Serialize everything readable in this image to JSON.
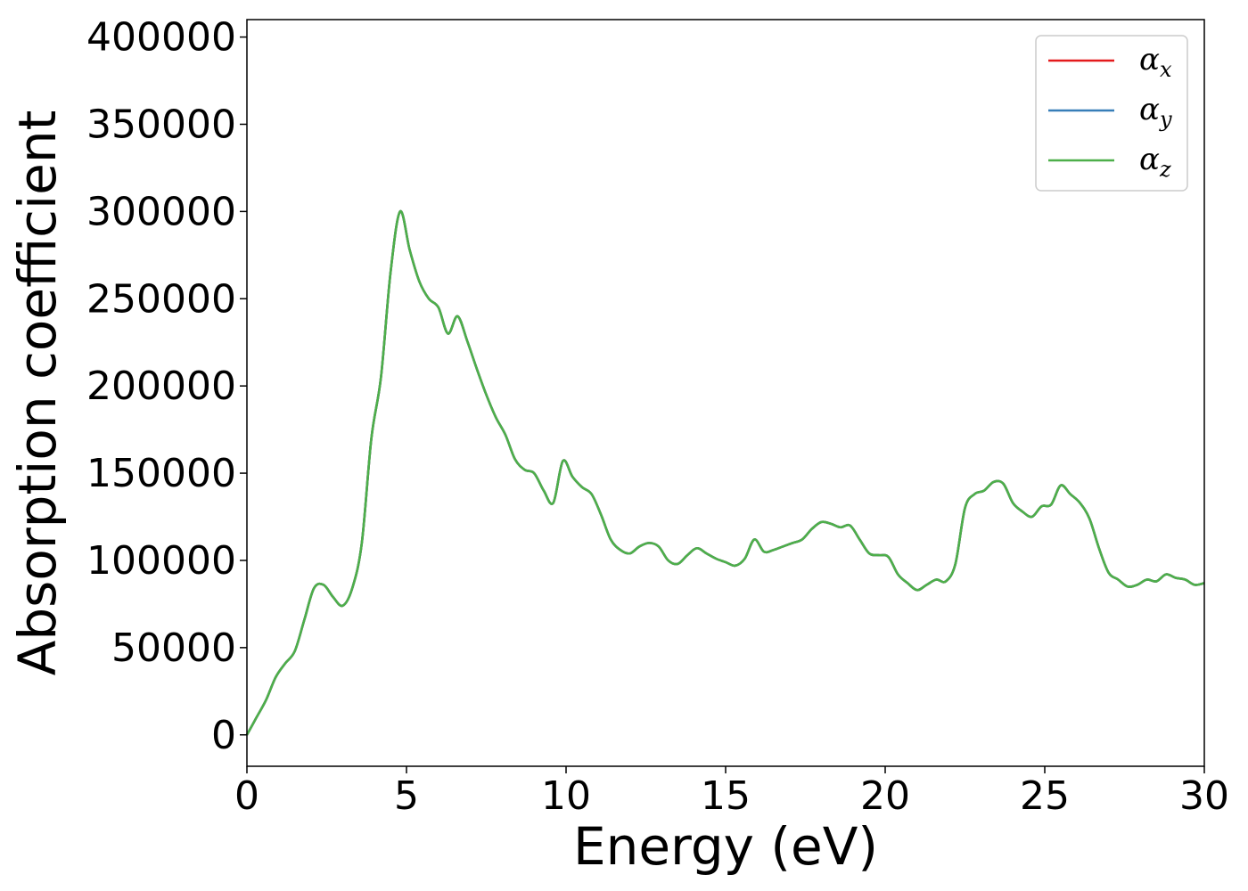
{
  "chart_data": {
    "type": "line",
    "title": "",
    "xlabel": "Energy (eV)",
    "ylabel": "Absorption coefficient",
    "xlim": [
      0,
      30
    ],
    "ylim": [
      -18000,
      410000
    ],
    "xticks": [
      0,
      5,
      10,
      15,
      20,
      25,
      30
    ],
    "yticks": [
      0,
      50000,
      100000,
      150000,
      200000,
      250000,
      300000,
      350000,
      400000
    ],
    "grid": false,
    "legend_position": "top-right",
    "x": [
      0,
      0.3,
      0.6,
      0.9,
      1.2,
      1.5,
      1.8,
      2.1,
      2.4,
      2.7,
      3.0,
      3.3,
      3.6,
      3.9,
      4.2,
      4.5,
      4.8,
      5.1,
      5.4,
      5.7,
      6.0,
      6.3,
      6.6,
      6.9,
      7.2,
      7.5,
      7.8,
      8.1,
      8.4,
      8.7,
      9.0,
      9.3,
      9.6,
      9.9,
      10.2,
      10.5,
      10.8,
      11.1,
      11.4,
      11.7,
      12.0,
      12.3,
      12.6,
      12.9,
      13.2,
      13.5,
      13.8,
      14.1,
      14.4,
      14.7,
      15.0,
      15.3,
      15.6,
      15.9,
      16.2,
      16.5,
      16.8,
      17.1,
      17.4,
      17.7,
      18.0,
      18.3,
      18.6,
      18.9,
      19.2,
      19.5,
      19.8,
      20.1,
      20.4,
      20.7,
      21.0,
      21.3,
      21.6,
      21.9,
      22.2,
      22.5,
      22.8,
      23.1,
      23.4,
      23.7,
      24.0,
      24.3,
      24.6,
      24.9,
      25.2,
      25.5,
      25.8,
      26.1,
      26.4,
      26.7,
      27.0,
      27.3,
      27.6,
      27.9,
      28.2,
      28.5,
      28.8,
      29.1,
      29.4,
      29.7,
      30.0
    ],
    "series": [
      {
        "name": "α_x",
        "label_main": "α",
        "label_sub": "x",
        "color": "#e41a1c",
        "values": [
          0,
          10000,
          20000,
          33000,
          41000,
          48000,
          66000,
          84000,
          86000,
          79000,
          74000,
          84000,
          110000,
          170000,
          205000,
          265000,
          300000,
          278000,
          260000,
          250000,
          245000,
          230000,
          240000,
          226000,
          210000,
          195000,
          182000,
          172000,
          158000,
          152000,
          150000,
          140000,
          133000,
          157000,
          148000,
          142000,
          138000,
          126000,
          112000,
          106000,
          104000,
          108000,
          110000,
          108000,
          100000,
          98000,
          103000,
          107000,
          104000,
          101000,
          99000,
          97000,
          101000,
          112000,
          105000,
          106000,
          108000,
          110000,
          112000,
          118000,
          122000,
          121000,
          119000,
          120000,
          112000,
          104000,
          103000,
          102000,
          92000,
          87000,
          83000,
          86000,
          89000,
          88000,
          98000,
          130000,
          138000,
          140000,
          145000,
          144000,
          133000,
          128000,
          125000,
          131000,
          132000,
          143000,
          138000,
          133000,
          124000,
          107000,
          93000,
          89000,
          85000,
          86000,
          89000,
          88000,
          92000,
          90000,
          89000,
          86000,
          87000
        ]
      },
      {
        "name": "α_y",
        "label_main": "α",
        "label_sub": "y",
        "color": "#377eb8",
        "values": [
          0,
          10000,
          20000,
          33000,
          41000,
          48000,
          66000,
          84000,
          86000,
          79000,
          74000,
          84000,
          110000,
          170000,
          205000,
          265000,
          300000,
          278000,
          260000,
          250000,
          245000,
          230000,
          240000,
          226000,
          210000,
          195000,
          182000,
          172000,
          158000,
          152000,
          150000,
          140000,
          133000,
          157000,
          148000,
          142000,
          138000,
          126000,
          112000,
          106000,
          104000,
          108000,
          110000,
          108000,
          100000,
          98000,
          103000,
          107000,
          104000,
          101000,
          99000,
          97000,
          101000,
          112000,
          105000,
          106000,
          108000,
          110000,
          112000,
          118000,
          122000,
          121000,
          119000,
          120000,
          112000,
          104000,
          103000,
          102000,
          92000,
          87000,
          83000,
          86000,
          89000,
          88000,
          98000,
          130000,
          138000,
          140000,
          145000,
          144000,
          133000,
          128000,
          125000,
          131000,
          132000,
          143000,
          138000,
          133000,
          124000,
          107000,
          93000,
          89000,
          85000,
          86000,
          89000,
          88000,
          92000,
          90000,
          89000,
          86000,
          87000
        ]
      },
      {
        "name": "α_z",
        "label_main": "α",
        "label_sub": "z",
        "color": "#4daf4a",
        "values": [
          0,
          10000,
          20000,
          33000,
          41000,
          48000,
          66000,
          84000,
          86000,
          79000,
          74000,
          84000,
          110000,
          170000,
          205000,
          265000,
          300000,
          278000,
          260000,
          250000,
          245000,
          230000,
          240000,
          226000,
          210000,
          195000,
          182000,
          172000,
          158000,
          152000,
          150000,
          140000,
          133000,
          157000,
          148000,
          142000,
          138000,
          126000,
          112000,
          106000,
          104000,
          108000,
          110000,
          108000,
          100000,
          98000,
          103000,
          107000,
          104000,
          101000,
          99000,
          97000,
          101000,
          112000,
          105000,
          106000,
          108000,
          110000,
          112000,
          118000,
          122000,
          121000,
          119000,
          120000,
          112000,
          104000,
          103000,
          102000,
          92000,
          87000,
          83000,
          86000,
          89000,
          88000,
          98000,
          130000,
          138000,
          140000,
          145000,
          144000,
          133000,
          128000,
          125000,
          131000,
          132000,
          143000,
          138000,
          133000,
          124000,
          107000,
          93000,
          89000,
          85000,
          86000,
          89000,
          88000,
          92000,
          90000,
          89000,
          86000,
          87000
        ]
      }
    ]
  }
}
